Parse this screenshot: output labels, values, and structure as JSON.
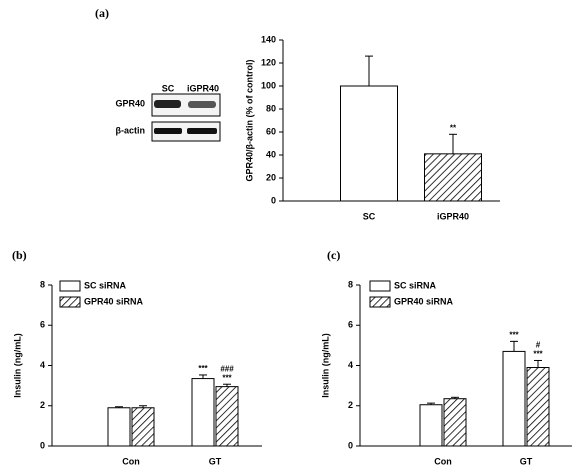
{
  "blot": {
    "panel_label": "(a)",
    "lanes": [
      "SC",
      "iGPR40"
    ],
    "rows": [
      "GPR40",
      "β-actin"
    ]
  },
  "chart_data": [
    {
      "type": "bar",
      "label": "(a)",
      "ylabel": "GPR40/β-actin (% of control)",
      "categories": [
        "SC",
        "iGPR40"
      ],
      "series": [
        {
          "name": "GPR40/β-actin",
          "color": "#ffffff",
          "hatch": false,
          "values": [
            100,
            41
          ],
          "errors": [
            26,
            17
          ],
          "significance": [
            null,
            [
              "**"
            ]
          ]
        }
      ],
      "per_category_hatch": [
        false,
        true
      ],
      "ylim": [
        0,
        140
      ],
      "yticks": [
        0,
        20,
        40,
        60,
        80,
        100,
        120,
        140
      ]
    },
    {
      "type": "grouped-bar",
      "label": "(b)",
      "ylabel": "Insulin (ng/mL)",
      "categories": [
        "Con",
        "GT"
      ],
      "series": [
        {
          "name": "SC siRNA",
          "color": "#ffffff",
          "hatch": false,
          "values": [
            1.9,
            3.35
          ],
          "errors": [
            0.05,
            0.18
          ],
          "significance": [
            null,
            [
              "***"
            ]
          ]
        },
        {
          "name": "GPR40 siRNA",
          "color": "#ffffff",
          "hatch": true,
          "values": [
            1.9,
            2.95
          ],
          "errors": [
            0.1,
            0.12
          ],
          "significance": [
            null,
            [
              "###",
              "***"
            ]
          ]
        }
      ],
      "ylim": [
        0,
        8
      ],
      "yticks": [
        0,
        2,
        4,
        6,
        8
      ]
    },
    {
      "type": "grouped-bar",
      "label": "(c)",
      "ylabel": "Insulin (ng/mL)",
      "categories": [
        "Con",
        "GT"
      ],
      "series": [
        {
          "name": "SC siRNA",
          "color": "#ffffff",
          "hatch": false,
          "values": [
            2.05,
            4.7
          ],
          "errors": [
            0.08,
            0.5
          ],
          "significance": [
            null,
            [
              "***"
            ]
          ]
        },
        {
          "name": "GPR40 siRNA",
          "color": "#ffffff",
          "hatch": true,
          "values": [
            2.35,
            3.9
          ],
          "errors": [
            0.07,
            0.35
          ],
          "significance": [
            null,
            [
              "#",
              "***"
            ]
          ]
        }
      ],
      "ylim": [
        0,
        8
      ],
      "yticks": [
        0,
        2,
        4,
        6,
        8
      ]
    }
  ]
}
